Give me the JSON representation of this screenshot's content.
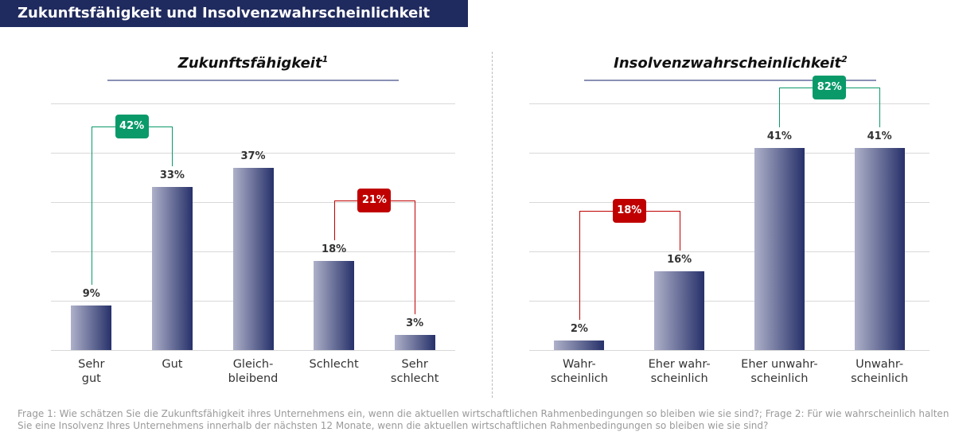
{
  "header": {
    "title": "Zukunftsfähigkeit und Insolvenzwahrscheinlichkeit"
  },
  "chart_data": [
    {
      "type": "bar",
      "title": "Zukunftsfähigkeit",
      "title_superscript": "1",
      "categories": [
        "Sehr\ngut",
        "Gut",
        "Gleich-\nbleibend",
        "Schlecht",
        "Sehr\nschlecht"
      ],
      "values": [
        9,
        33,
        37,
        18,
        3
      ],
      "value_labels": [
        "9%",
        "33%",
        "37%",
        "18%",
        "3%"
      ],
      "color": [
        "#aeb1c9",
        "#27316a"
      ],
      "ylim": [
        0,
        50
      ],
      "yticks": [
        0,
        10,
        20,
        30,
        40,
        50
      ],
      "grid": true,
      "brackets": [
        {
          "from": 0,
          "to": 1,
          "value": 42,
          "label": "42%",
          "color": "#0a9a6a"
        },
        {
          "from": 3,
          "to": 4,
          "value": 21,
          "label": "21%",
          "color": "#c00000"
        }
      ]
    },
    {
      "type": "bar",
      "title": "Insolvenzwahrscheinlichkeit",
      "title_superscript": "2",
      "categories": [
        "Wahr-\nscheinlich",
        "Eher wahr-\nscheinlich",
        "Eher unwahr-\nscheinlich",
        "Unwahr-\nscheinlich"
      ],
      "values": [
        2,
        16,
        41,
        41
      ],
      "value_labels": [
        "2%",
        "16%",
        "41%",
        "41%"
      ],
      "color": [
        "#aeb1c9",
        "#27316a"
      ],
      "ylim": [
        0,
        50
      ],
      "yticks": [
        0,
        10,
        20,
        30,
        40,
        50
      ],
      "grid": true,
      "brackets": [
        {
          "from": 0,
          "to": 1,
          "value": 18,
          "label": "18%",
          "color": "#c00000"
        },
        {
          "from": 2,
          "to": 3,
          "value": 82,
          "label": "82%",
          "color": "#0a9a6a"
        }
      ]
    }
  ],
  "footnote": "Frage 1: Wie schätzen Sie die Zukunftsfähigkeit ihres Unternehmens ein, wenn die aktuellen wirtschaftlichen Rahmenbedingungen so bleiben wie sie sind?; Frage 2: Für wie wahrscheinlich halten Sie eine Insolvenz Ihres Unternehmens innerhalb der nächsten 12 Monate, wenn die aktuellen wirtschaftlichen Rahmenbedingungen so bleiben wie sie sind?"
}
